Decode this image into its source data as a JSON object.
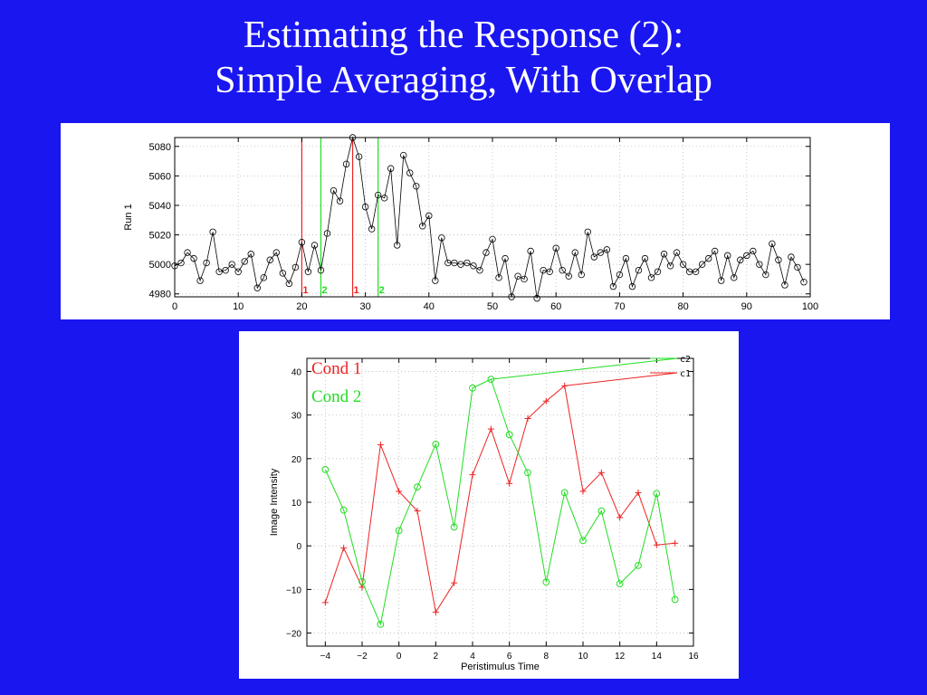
{
  "slide": {
    "title_line1": "Estimating the Response (2):",
    "title_line2": "Simple Averaging, With Overlap"
  },
  "colors": {
    "background": "#1a16f0",
    "cond1": "#ee2222",
    "cond2": "#22dd22",
    "series": "#000000"
  },
  "chart_data": [
    {
      "type": "line",
      "title": "",
      "xlabel": "",
      "ylabel": "Run 1",
      "xlim": [
        0,
        100
      ],
      "ylim": [
        4978,
        5086
      ],
      "xticks": [
        0,
        10,
        20,
        30,
        40,
        50,
        60,
        70,
        80,
        90,
        100
      ],
      "yticks": [
        4980,
        5000,
        5020,
        5040,
        5060,
        5080
      ],
      "grid": true,
      "marker": "circle",
      "series": [
        {
          "values": [
            4999,
            5001,
            5008,
            5004,
            4989,
            5001,
            5022,
            4995,
            4996,
            5000,
            4995,
            5002,
            5007,
            4984,
            4991,
            5003,
            5008,
            4994,
            4987,
            4998,
            5015,
            4995,
            5013,
            4996,
            5021,
            5050,
            5043,
            5068,
            5086,
            5073,
            5039,
            5024,
            5047,
            5045,
            5065,
            5013,
            5074,
            5062,
            5053,
            5026,
            5033,
            4989,
            5018,
            5001,
            5001,
            5000,
            5001,
            4999,
            4996,
            5008,
            5017,
            4991,
            5004,
            4978,
            4992,
            4990,
            5009,
            4977,
            4996,
            4995,
            5011,
            4996,
            4992,
            5008,
            4993,
            5022,
            5005,
            5008,
            5010,
            4985,
            4993,
            5004,
            4985,
            4996,
            5004,
            4991,
            4995,
            5007,
            4999,
            5008,
            5000,
            4995,
            4995,
            5000,
            5004,
            5009,
            4989,
            5006,
            4991,
            5003,
            5006,
            5009,
            5000,
            4993,
            5014,
            5003,
            4986,
            5005,
            4998,
            4988
          ]
        }
      ],
      "markers": [
        {
          "x": 20,
          "label": "1",
          "condition": "cond1"
        },
        {
          "x": 23,
          "label": "2",
          "condition": "cond2"
        },
        {
          "x": 28,
          "label": "1",
          "condition": "cond1"
        },
        {
          "x": 32,
          "label": "2",
          "condition": "cond2"
        }
      ]
    },
    {
      "type": "line",
      "title": "",
      "xlabel": "Peristimulus Time",
      "ylabel": "Image Intensity",
      "xlim": [
        -5,
        16
      ],
      "ylim": [
        -23,
        43
      ],
      "xticks": [
        -4,
        -2,
        0,
        2,
        4,
        6,
        8,
        10,
        12,
        14,
        16
      ],
      "yticks": [
        -20,
        -10,
        0,
        10,
        20,
        30,
        40
      ],
      "grid": true,
      "legend_position": "top-right",
      "annotations": [
        "Cond 1",
        "Cond 2"
      ],
      "x": [
        -4,
        -3,
        -2,
        -1,
        0,
        1,
        2,
        3,
        4,
        5,
        6,
        7,
        8,
        9,
        10,
        11,
        12,
        13,
        14,
        15
      ],
      "series": [
        {
          "name": "c1",
          "condition": "cond1",
          "marker": "plus",
          "values": [
            -13,
            -0.5,
            -9.5,
            23.2,
            12.5,
            8,
            -15.2,
            -8.5,
            16.3,
            26.8,
            14.3,
            29.2,
            33.2,
            36.7,
            12.5,
            16.8,
            6.5,
            12.2,
            0.2,
            0.6
          ]
        },
        {
          "name": "c2",
          "condition": "cond2",
          "marker": "circle",
          "values": [
            17.5,
            8.2,
            -8.2,
            -18,
            3.5,
            13.5,
            23.3,
            4.3,
            36.2,
            38.2,
            25.5,
            16.8,
            -8.3,
            12.2,
            1.2,
            8,
            -8.7,
            -4.5,
            12,
            -12.3
          ]
        }
      ]
    }
  ]
}
